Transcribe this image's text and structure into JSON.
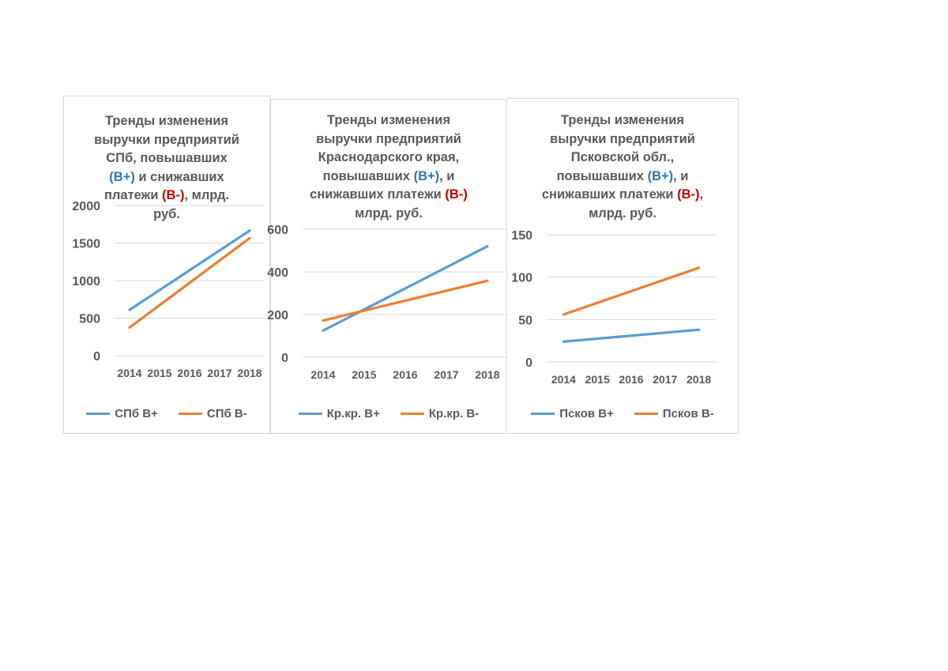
{
  "colors": {
    "series_plus": "#5b9bd5",
    "series_minus": "#ed7d31",
    "bplus_text": "#2e75b6",
    "bminus_text": "#c00000",
    "grid": "#d9d9d9",
    "text": "#595959"
  },
  "chart_data": [
    {
      "type": "line",
      "title_parts": [
        {
          "text": "Тренды изменения",
          "style": "plain",
          "br": true
        },
        {
          "text": "выручки  предприятий",
          "style": "plain",
          "br": true
        },
        {
          "text": "СПб, повышавших",
          "style": "plain",
          "br": true
        },
        {
          "text": "(В+)",
          "style": "bplus",
          "br": false
        },
        {
          "text": " и снижавших",
          "style": "plain",
          "br": true
        },
        {
          "text": "платежи ",
          "style": "plain",
          "br": false
        },
        {
          "text": "(В-)",
          "style": "bminus",
          "br": false
        },
        {
          "text": ",  млрд.",
          "style": "plain",
          "br": true
        },
        {
          "text": "руб.",
          "style": "plain",
          "br": false
        }
      ],
      "categories": [
        "2014",
        "2015",
        "2016",
        "2017",
        "2018"
      ],
      "ylim": [
        0,
        2000
      ],
      "yticks": [
        0,
        500,
        1000,
        1500,
        2000
      ],
      "grid": true,
      "series": [
        {
          "name": "СПб В+",
          "color": "#5b9bd5",
          "x": [
            "2014",
            "2018"
          ],
          "values": [
            610,
            1665
          ]
        },
        {
          "name": "СПб В-",
          "color": "#ed7d31",
          "x": [
            "2014",
            "2018"
          ],
          "values": [
            375,
            1565
          ]
        }
      ],
      "legend_position": "bottom"
    },
    {
      "type": "line",
      "title_parts": [
        {
          "text": "Тренды изменения",
          "style": "plain",
          "br": true
        },
        {
          "text": "выручки предприятий",
          "style": "plain",
          "br": true
        },
        {
          "text": "Краснодарского края,",
          "style": "plain",
          "br": true
        },
        {
          "text": "повышавших ",
          "style": "plain",
          "br": false
        },
        {
          "text": "(В+)",
          "style": "bplus",
          "br": false
        },
        {
          "text": ", и",
          "style": "plain",
          "br": true
        },
        {
          "text": "снижавших платежи ",
          "style": "plain",
          "br": false
        },
        {
          "text": "(В-)",
          "style": "bminus",
          "br": true
        },
        {
          "text": "млрд. руб.",
          "style": "plain",
          "br": false
        }
      ],
      "categories": [
        "2014",
        "2015",
        "2016",
        "2017",
        "2018"
      ],
      "ylim": [
        0,
        600
      ],
      "yticks": [
        0,
        200,
        400,
        600
      ],
      "grid": true,
      "series": [
        {
          "name": "Кр.кр. В+",
          "color": "#5b9bd5",
          "x": [
            "2014",
            "2018"
          ],
          "values": [
            125,
            520
          ]
        },
        {
          "name": "Кр.кр. В-",
          "color": "#ed7d31",
          "x": [
            "2014",
            "2018"
          ],
          "values": [
            172,
            358
          ]
        }
      ],
      "legend_position": "bottom"
    },
    {
      "type": "line",
      "title_parts": [
        {
          "text": "Тренды изменения",
          "style": "plain",
          "br": true
        },
        {
          "text": "выручки предприятий",
          "style": "plain",
          "br": true
        },
        {
          "text": "Псковской обл.,",
          "style": "plain",
          "br": true
        },
        {
          "text": "повышавших ",
          "style": "plain",
          "br": false
        },
        {
          "text": "(В+)",
          "style": "bplus",
          "br": false
        },
        {
          "text": ", и",
          "style": "plain",
          "br": true
        },
        {
          "text": "снижавших платежи ",
          "style": "plain",
          "br": false
        },
        {
          "text": "(В-)",
          "style": "bminus",
          "br": false
        },
        {
          "text": ",",
          "style": "plain",
          "br": true
        },
        {
          "text": "млрд. руб.",
          "style": "plain",
          "br": false
        }
      ],
      "categories": [
        "2014",
        "2015",
        "2016",
        "2017",
        "2018"
      ],
      "ylim": [
        0,
        150
      ],
      "yticks": [
        0,
        50,
        100,
        150
      ],
      "grid": true,
      "series": [
        {
          "name": "Псков В+",
          "color": "#5b9bd5",
          "x": [
            "2014",
            "2018"
          ],
          "values": [
            24,
            38
          ]
        },
        {
          "name": "Псков В-",
          "color": "#ed7d31",
          "x": [
            "2014",
            "2018"
          ],
          "values": [
            56,
            111
          ]
        }
      ],
      "legend_position": "bottom"
    }
  ]
}
